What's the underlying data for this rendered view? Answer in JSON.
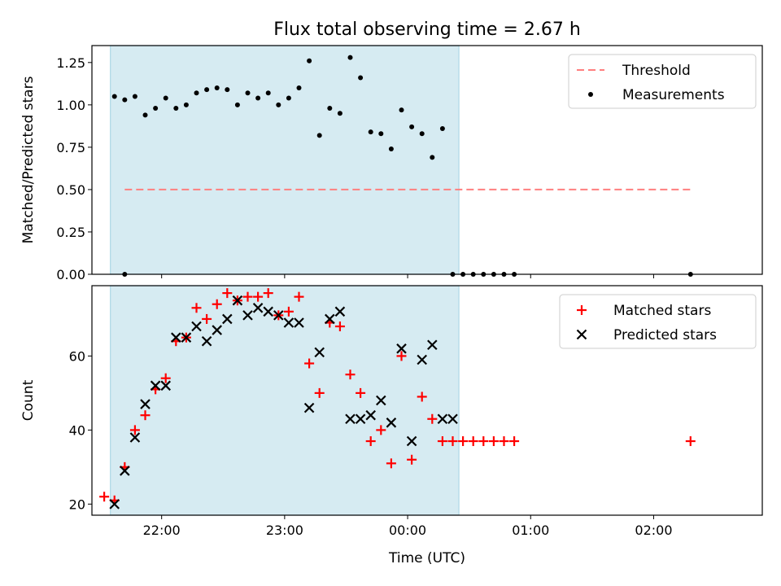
{
  "figure": {
    "title": "Flux total observing time = 2.67 h"
  },
  "chart_data": [
    {
      "type": "scatter",
      "panel": "top",
      "ylabel": "Matched/Predicted stars",
      "xlabel": "",
      "xlim": [
        "21:26",
        "02:53"
      ],
      "ylim": [
        0,
        1.35
      ],
      "yticks": [
        "0.00",
        "0.25",
        "0.50",
        "0.75",
        "1.00",
        "1.25"
      ],
      "shaded_span": [
        "21:35",
        "00:25"
      ],
      "legend_position": "upper right",
      "series": [
        {
          "name": "Threshold",
          "kind": "dashed-line",
          "color": "#ff7f7f",
          "x": [
            "21:42",
            "02:18"
          ],
          "y": [
            0.5,
            0.5
          ]
        },
        {
          "name": "Measurements",
          "kind": "dot",
          "color": "#000000",
          "x": [
            "21:42",
            "21:37",
            "21:42",
            "21:47",
            "21:52",
            "21:57",
            "22:02",
            "22:07",
            "22:12",
            "22:17",
            "22:22",
            "22:27",
            "22:32",
            "22:37",
            "22:42",
            "22:47",
            "22:52",
            "22:57",
            "23:02",
            "23:07",
            "23:12",
            "23:17",
            "23:22",
            "23:27",
            "23:32",
            "23:37",
            "23:42",
            "23:47",
            "23:52",
            "23:57",
            "00:02",
            "00:07",
            "00:12",
            "00:17",
            "00:22",
            "00:27",
            "00:32",
            "00:37",
            "00:42",
            "00:47",
            "00:52",
            "02:18"
          ],
          "y": [
            0.0,
            1.05,
            1.03,
            1.05,
            0.94,
            0.98,
            1.04,
            0.98,
            1.0,
            1.07,
            1.09,
            1.1,
            1.09,
            1.0,
            1.07,
            1.04,
            1.07,
            1.0,
            1.04,
            1.1,
            1.26,
            0.82,
            0.98,
            0.95,
            1.28,
            1.16,
            0.84,
            0.83,
            0.74,
            0.97,
            0.87,
            0.83,
            0.69,
            0.86,
            0.0,
            0.0,
            0.0,
            0.0,
            0.0,
            0.0,
            0.0,
            0.0
          ]
        }
      ]
    },
    {
      "type": "scatter",
      "panel": "bottom",
      "ylabel": "Count",
      "xlabel": "Time (UTC)",
      "xlim": [
        "21:26",
        "02:53"
      ],
      "ylim": [
        17,
        79
      ],
      "yticks": [
        "20",
        "40",
        "60"
      ],
      "xticks": [
        "22:00",
        "23:00",
        "00:00",
        "01:00",
        "02:00"
      ],
      "shaded_span": [
        "21:35",
        "00:25"
      ],
      "legend_position": "upper right",
      "series": [
        {
          "name": "Matched stars",
          "kind": "plus",
          "color": "#ff0000",
          "x": [
            "21:32",
            "21:37",
            "21:42",
            "21:47",
            "21:52",
            "21:57",
            "22:02",
            "22:07",
            "22:12",
            "22:17",
            "22:22",
            "22:27",
            "22:32",
            "22:37",
            "22:42",
            "22:47",
            "22:52",
            "22:57",
            "23:02",
            "23:07",
            "23:12",
            "23:17",
            "23:22",
            "23:27",
            "23:32",
            "23:37",
            "23:42",
            "23:47",
            "23:52",
            "23:57",
            "00:02",
            "00:07",
            "00:12",
            "00:17",
            "00:22",
            "00:27",
            "00:32",
            "00:37",
            "00:42",
            "00:47",
            "00:52",
            "02:18"
          ],
          "y": [
            22,
            21,
            30,
            40,
            44,
            51,
            54,
            64,
            65,
            73,
            70,
            74,
            77,
            75,
            76,
            76,
            77,
            71,
            72,
            76,
            58,
            50,
            69,
            68,
            55,
            50,
            37,
            40,
            31,
            60,
            32,
            49,
            43,
            37,
            37,
            37,
            37,
            37,
            37,
            37,
            37,
            37
          ]
        },
        {
          "name": "Predicted stars",
          "kind": "x",
          "color": "#000000",
          "x": [
            "21:37",
            "21:42",
            "21:47",
            "21:52",
            "21:57",
            "22:02",
            "22:07",
            "22:12",
            "22:17",
            "22:22",
            "22:27",
            "22:32",
            "22:37",
            "22:42",
            "22:47",
            "22:52",
            "22:57",
            "23:02",
            "23:07",
            "23:12",
            "23:17",
            "23:22",
            "23:27",
            "23:32",
            "23:37",
            "23:42",
            "23:47",
            "23:52",
            "23:57",
            "00:02",
            "00:07",
            "00:12",
            "00:17",
            "00:22"
          ],
          "y": [
            20,
            29,
            38,
            47,
            52,
            52,
            65,
            65,
            68,
            64,
            67,
            70,
            75,
            71,
            73,
            72,
            71,
            69,
            69,
            46,
            61,
            70,
            72,
            43,
            43,
            44,
            48,
            42,
            62,
            37,
            59,
            63,
            43,
            43
          ]
        }
      ]
    }
  ]
}
